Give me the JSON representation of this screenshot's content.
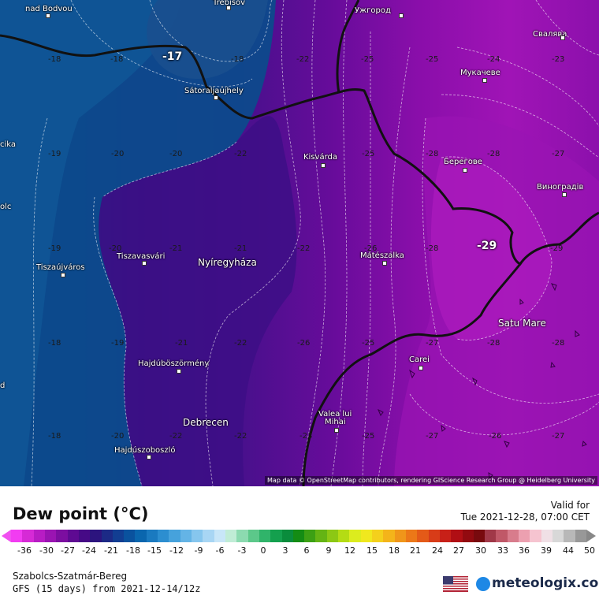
{
  "map": {
    "attribution": "Map data © OpenStreetMap contributors, rendering GIScience Research Group @ Heidelberg University",
    "cities": [
      {
        "name": "Trebišov",
        "cls": ""
      },
      {
        "name": "nad Bodvou",
        "cls": ""
      },
      {
        "name": "Ужгород",
        "cls": ""
      },
      {
        "name": "Свалява",
        "cls": ""
      },
      {
        "name": "Мукачеве",
        "cls": ""
      },
      {
        "name": "Sátoraljaújhely",
        "cls": ""
      },
      {
        "name": "Kisvárda",
        "cls": ""
      },
      {
        "name": "Берегове",
        "cls": ""
      },
      {
        "name": "Виноградів",
        "cls": ""
      },
      {
        "name": "Tiszavasvári",
        "cls": ""
      },
      {
        "name": "Nyíregyháza",
        "cls": "big"
      },
      {
        "name": "Mátészalka",
        "cls": ""
      },
      {
        "name": "Tiszaújváros",
        "cls": ""
      },
      {
        "name": "Satu Mare",
        "cls": "big"
      },
      {
        "name": "Carei",
        "cls": ""
      },
      {
        "name": "Hajdúböszörmény",
        "cls": ""
      },
      {
        "name": "Debrecen",
        "cls": "big"
      },
      {
        "name": "Valea lui",
        "cls": ""
      },
      {
        "name": "Mihai",
        "cls": ""
      },
      {
        "name": "Hajdúszoboszló",
        "cls": ""
      },
      {
        "name": "cika",
        "cls": ""
      },
      {
        "name": "olc",
        "cls": ""
      },
      {
        "name": "d",
        "cls": ""
      }
    ],
    "values": [
      "-18",
      "-18",
      "-17",
      "-18",
      "-22",
      "-25",
      "-25",
      "-24",
      "-23",
      "-19",
      "-20",
      "-20",
      "-22",
      "-25",
      "-28",
      "-28",
      "-27",
      "-19",
      "-20",
      "-21",
      "-21",
      "-22",
      "-26",
      "-28",
      "-29",
      "-29",
      "-18",
      "-19",
      "-21",
      "-22",
      "-26",
      "-25",
      "-27",
      "-28",
      "-28",
      "-18",
      "-20",
      "-22",
      "-22",
      "-23",
      "-25",
      "-27",
      "-26",
      "-27"
    ]
  },
  "legend": {
    "title": "Dew point (°C)",
    "valid_label": "Valid for",
    "valid_time": "Tue 2021-12-28, 07:00 CET",
    "ticks": [
      "-36",
      "-30",
      "-27",
      "-24",
      "-21",
      "-18",
      "-15",
      "-12",
      "-9",
      "-6",
      "-3",
      "0",
      "3",
      "6",
      "9",
      "12",
      "15",
      "18",
      "21",
      "24",
      "27",
      "30",
      "33",
      "36",
      "39",
      "44",
      "50"
    ],
    "colors": [
      "#f23cf2",
      "#d62ad6",
      "#b81cc4",
      "#9a14b2",
      "#7c0ea0",
      "#5e0a92",
      "#460a86",
      "#2c147e",
      "#1c2a86",
      "#123e92",
      "#0a529e",
      "#0a66ae",
      "#1a7ac0",
      "#2c8ed0",
      "#46a2dc",
      "#64b4e6",
      "#86c6ee",
      "#a8d6f4",
      "#c8e6f8",
      "#c0ecd6",
      "#8cdab0",
      "#5cc88a",
      "#30b46a",
      "#14a04e",
      "#0a8c3c",
      "#148c14",
      "#3ca014",
      "#64b414",
      "#8cc814",
      "#b4dc14",
      "#dcec1e",
      "#f0e81e",
      "#f4d01c",
      "#f4b41a",
      "#f0961a",
      "#ec7818",
      "#e45a18",
      "#d83c18",
      "#c82018",
      "#b00e14",
      "#920a10",
      "#780a0e",
      "#a03848",
      "#c05868",
      "#d87c8c",
      "#eca0b0",
      "#f6c4d0",
      "#f0e0e6",
      "#d8d8d8",
      "#b8b8b8",
      "#989898"
    ],
    "region": "Szabolcs-Szatmár-Bereg",
    "model": "GFS (15 days) from  2021-12-14/12z",
    "brand": "meteologix.com",
    "flag_icon": "us-flag-icon"
  }
}
